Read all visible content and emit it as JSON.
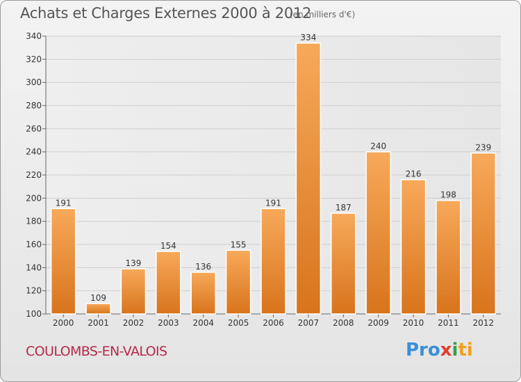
{
  "header": {
    "title": "Achats et Charges Externes 2000 à 2012",
    "unit": "(en milliers d'€)"
  },
  "footer": {
    "commune": "COULOMBS-EN-VALOIS",
    "logo": "Proxiti"
  },
  "colors": {
    "bar_top": "#f7a95a",
    "bar_bottom": "#d8741c",
    "commune_text": "#b5294a",
    "grid": "#cfcfcf"
  },
  "chart_data": {
    "type": "bar",
    "title": "Achats et Charges Externes 2000 à 2012",
    "subtitle": "(en milliers d'€)",
    "categories": [
      "2000",
      "2001",
      "2002",
      "2003",
      "2004",
      "2005",
      "2006",
      "2007",
      "2008",
      "2009",
      "2010",
      "2011",
      "2012"
    ],
    "values": [
      191,
      109,
      139,
      154,
      136,
      155,
      191,
      334,
      187,
      240,
      216,
      198,
      239
    ],
    "ylim": [
      100,
      340
    ],
    "yticks": [
      100,
      120,
      140,
      160,
      180,
      200,
      220,
      240,
      260,
      280,
      300,
      320,
      340
    ],
    "grid": true,
    "data_labels": true
  }
}
